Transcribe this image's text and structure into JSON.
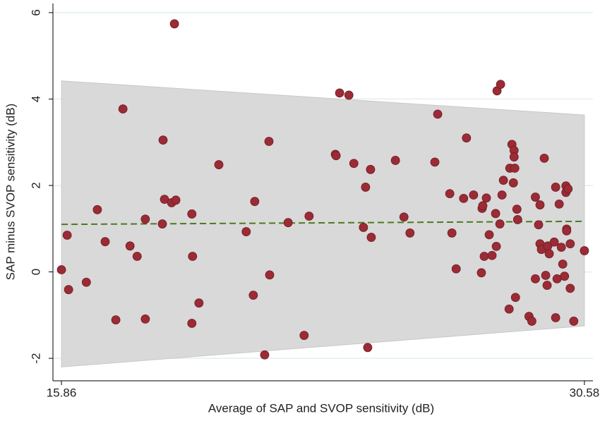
{
  "chart_data": {
    "type": "scatter",
    "xlabel": "Average of SAP and SVOP sensitivity (dB)",
    "ylabel": "SAP minus SVOP sensitivity (dB)",
    "xlim": [
      15.62,
      30.82
    ],
    "ylim": [
      -2.52,
      6.21
    ],
    "xticks": [
      15.86,
      30.58
    ],
    "yticks": [
      -2,
      0,
      2,
      4,
      6
    ],
    "grid": true,
    "color": "#9b2b35",
    "band": {
      "x": [
        15.86,
        30.58
      ],
      "upper": [
        4.42,
        3.63
      ],
      "lower": [
        -2.2,
        -1.25
      ],
      "color": "#d9d9d9"
    },
    "mean_line": {
      "x": [
        15.86,
        30.58
      ],
      "values": [
        1.1,
        1.17
      ],
      "color": "#4a7a1e"
    },
    "x": [
      15.86,
      16.02,
      16.06,
      16.56,
      16.87,
      17.09,
      17.39,
      17.59,
      17.79,
      17.99,
      18.22,
      18.22,
      18.7,
      18.72,
      18.76,
      18.96,
      19.04,
      19.08,
      19.53,
      19.53,
      19.55,
      19.73,
      20.29,
      21.06,
      21.3,
      21.26,
      21.58,
      21.7,
      21.72,
      22.24,
      22.69,
      22.83,
      23.57,
      23.59,
      23.69,
      23.95,
      24.09,
      24.36,
      24.42,
      24.56,
      24.58,
      24.48,
      25.26,
      25.5,
      25.67,
      26.37,
      26.45,
      26.79,
      26.85,
      26.97,
      27.18,
      27.26,
      27.46,
      27.7,
      27.72,
      27.68,
      27.76,
      27.82,
      27.9,
      27.98,
      28.08,
      28.1,
      28.12,
      28.22,
      28.2,
      28.26,
      28.3,
      28.46,
      28.48,
      28.54,
      28.6,
      28.6,
      28.58,
      28.62,
      28.64,
      28.68,
      28.7,
      29.02,
      29.1,
      29.2,
      29.2,
      29.29,
      29.33,
      29.33,
      29.37,
      29.45,
      29.49,
      29.53,
      29.55,
      29.59,
      29.73,
      29.77,
      29.77,
      29.81,
      29.87,
      29.93,
      29.97,
      30.02,
      30.06,
      30.06,
      30.12,
      30.08,
      30.08,
      30.18,
      30.18,
      30.28,
      30.58
    ],
    "values": [
      0.05,
      0.85,
      -0.41,
      -0.24,
      1.44,
      0.7,
      -1.11,
      3.77,
      0.6,
      0.36,
      1.22,
      -1.09,
      1.11,
      3.05,
      1.68,
      1.6,
      5.74,
      1.66,
      1.34,
      -1.19,
      0.36,
      -0.72,
      2.48,
      0.93,
      1.63,
      -0.54,
      -1.92,
      3.02,
      -0.07,
      1.14,
      -1.47,
      1.29,
      2.72,
      2.69,
      4.14,
      4.09,
      2.51,
      1.03,
      1.96,
      2.37,
      0.8,
      -1.75,
      2.58,
      1.27,
      0.9,
      2.54,
      3.65,
      1.81,
      0.9,
      0.07,
      1.7,
      3.1,
      1.78,
      1.47,
      1.53,
      -0.02,
      0.36,
      1.71,
      0.86,
      0.38,
      1.35,
      0.59,
      4.19,
      4.34,
      1.11,
      1.78,
      2.12,
      -0.86,
      2.4,
      2.95,
      2.81,
      2.66,
      2.06,
      2.4,
      -0.59,
      1.45,
      1.21,
      -1.03,
      -1.14,
      -0.16,
      1.73,
      1.09,
      1.55,
      0.65,
      0.52,
      2.63,
      -0.08,
      -0.31,
      0.6,
      0.42,
      0.69,
      1.96,
      -1.06,
      -0.16,
      1.57,
      0.57,
      0.18,
      -0.1,
      1.99,
      1.84,
      1.92,
      0.99,
      0.95,
      -0.38,
      0.65,
      -1.14,
      0.49
    ]
  }
}
